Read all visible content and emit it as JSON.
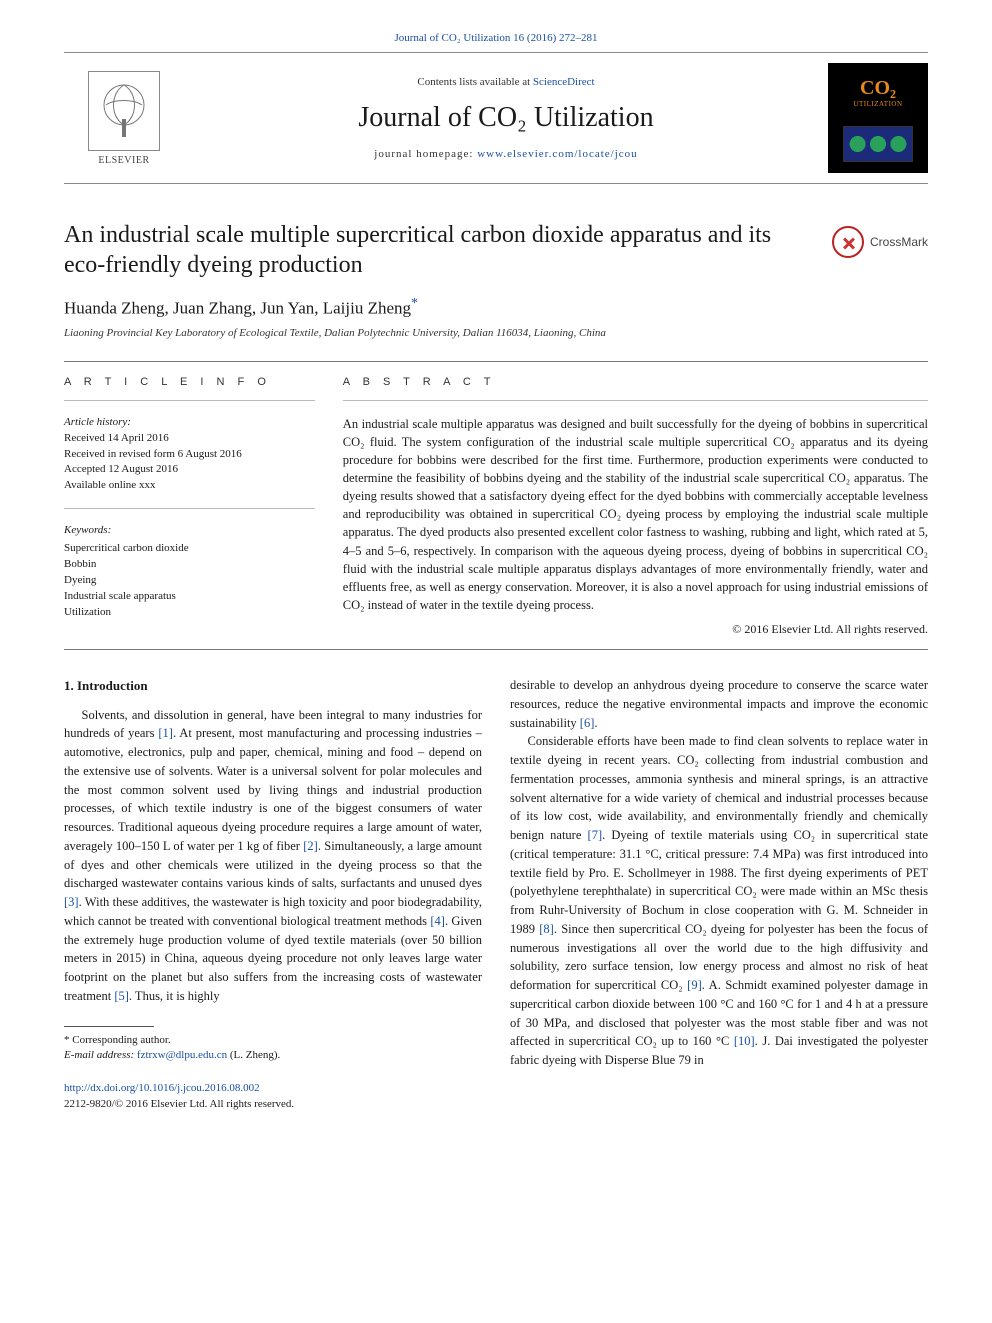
{
  "top": {
    "journal_ref": "Journal of CO₂ Utilization 16 (2016) 272–281"
  },
  "masthead": {
    "contents_prefix": "Contents lists available at ",
    "contents_link": "ScienceDirect",
    "journal_name": "Journal of CO₂ Utilization",
    "homepage_label": "journal homepage: ",
    "homepage_url": "www.elsevier.com/locate/jcou",
    "publisher_label": "ELSEVIER",
    "cover_brand": "CO₂",
    "cover_brand_sub": "UTILIZATION"
  },
  "crossmark": {
    "label": "CrossMark"
  },
  "article": {
    "title": "An industrial scale multiple supercritical carbon dioxide apparatus and its eco-friendly dyeing production",
    "authors": "Huanda Zheng, Juan Zhang, Jun Yan, Laijiu Zheng",
    "corr_marker": "*",
    "affiliation": "Liaoning Provincial Key Laboratory of Ecological Textile, Dalian Polytechnic University, Dalian 116034, Liaoning, China"
  },
  "info": {
    "head": "A R T I C L E   I N F O",
    "history_head": "Article history:",
    "history": [
      "Received 14 April 2016",
      "Received in revised form 6 August 2016",
      "Accepted 12 August 2016",
      "Available online xxx"
    ],
    "keywords_head": "Keywords:",
    "keywords": [
      "Supercritical carbon dioxide",
      "Bobbin",
      "Dyeing",
      "Industrial scale apparatus",
      "Utilization"
    ]
  },
  "abstract": {
    "head": "A B S T R A C T",
    "text": "An industrial scale multiple apparatus was designed and built successfully for the dyeing of bobbins in supercritical CO₂ fluid. The system configuration of the industrial scale multiple supercritical CO₂ apparatus and its dyeing procedure for bobbins were described for the first time. Furthermore, production experiments were conducted to determine the feasibility of bobbins dyeing and the stability of the industrial scale supercritical CO₂ apparatus. The dyeing results showed that a satisfactory dyeing effect for the dyed bobbins with commercially acceptable levelness and reproducibility was obtained in supercritical CO₂ dyeing process by employing the industrial scale multiple apparatus. The dyed products also presented excellent color fastness to washing, rubbing and light, which rated at 5, 4–5 and 5–6, respectively. In comparison with the aqueous dyeing process, dyeing of bobbins in supercritical CO₂ fluid with the industrial scale multiple apparatus displays advantages of more environmentally friendly, water and effluents free, as well as energy conservation. Moreover, it is also a novel approach for using industrial emissions of CO₂ instead of water in the textile dyeing process.",
    "copyright": "© 2016 Elsevier Ltd. All rights reserved."
  },
  "body": {
    "section_head": "1. Introduction",
    "left_para": "Solvents, and dissolution in general, have been integral to many industries for hundreds of years [1]. At present, most manufacturing and processing industries – automotive, electronics, pulp and paper, chemical, mining and food – depend on the extensive use of solvents. Water is a universal solvent for polar molecules and the most common solvent used by living things and industrial production processes, of which textile industry is one of the biggest consumers of water resources. Traditional aqueous dyeing procedure requires a large amount of water, averagely 100–150 L of water per 1 kg of fiber [2]. Simultaneously, a large amount of dyes and other chemicals were utilized in the dyeing process so that the discharged wastewater contains various kinds of salts, surfactants and unused dyes [3]. With these additives, the wastewater is high toxicity and poor biodegradability, which cannot be treated with conventional biological treatment methods [4]. Given the extremely huge production volume of dyed textile materials (over 50 billion meters in 2015) in China, aqueous dyeing procedure not only leaves large water footprint on the planet but also suffers from the increasing costs of wastewater treatment [5]. Thus, it is highly",
    "right_para1": "desirable to develop an anhydrous dyeing procedure to conserve the scarce water resources, reduce the negative environmental impacts and improve the economic sustainability [6].",
    "right_para2": "Considerable efforts have been made to find clean solvents to replace water in textile dyeing in recent years. CO₂ collecting from industrial combustion and fermentation processes, ammonia synthesis and mineral springs, is an attractive solvent alternative for a wide variety of chemical and industrial processes because of its low cost, wide availability, and environmentally friendly and chemically benign nature [7]. Dyeing of textile materials using CO₂ in supercritical state (critical temperature: 31.1 °C, critical pressure: 7.4 MPa) was first introduced into textile field by Pro. E. Schollmeyer in 1988. The first dyeing experiments of PET (polyethylene terephthalate) in supercritical CO₂ were made within an MSc thesis from Ruhr-University of Bochum in close cooperation with G. M. Schneider in 1989 [8]. Since then supercritical CO₂ dyeing for polyester has been the focus of numerous investigations all over the world due to the high diffusivity and solubility, zero surface tension, low energy process and almost no risk of heat deformation for supercritical CO₂ [9]. A. Schmidt examined polyester damage in supercritical carbon dioxide between 100 °C and 160 °C for 1 and 4 h at a pressure of 30 MPa, and disclosed that polyester was the most stable fiber and was not affected in supercritical CO₂ up to 160 °C [10]. J. Dai investigated the polyester fabric dyeing with Disperse Blue 79 in"
  },
  "footnote": {
    "label": "* Corresponding author.",
    "email_label": "E-mail address: ",
    "email": "fztrxw@dlpu.edu.cn",
    "email_name": " (L. Zheng)."
  },
  "doi": {
    "url": "http://dx.doi.org/10.1016/j.jcou.2016.08.002",
    "issn_line": "2212-9820/© 2016 Elsevier Ltd. All rights reserved."
  },
  "refs": {
    "r1": "[1]",
    "r2": "[2]",
    "r3": "[3]",
    "r4": "[4]",
    "r5": "[5]",
    "r6": "[6]",
    "r7": "[7]",
    "r8": "[8]",
    "r9": "[9]",
    "r10": "[10]"
  },
  "colors": {
    "link": "#1a4fa3",
    "text": "#1a1a1a",
    "rule": "#777777",
    "cover_bg": "#000000",
    "cover_accent": "#e78a1a"
  }
}
